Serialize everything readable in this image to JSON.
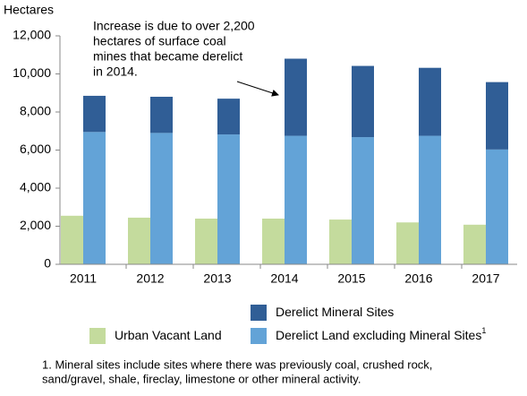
{
  "chart_data": {
    "type": "bar",
    "y_label": "Hectares",
    "annotation": {
      "lines": [
        "Increase is due to over 2,200",
        "hectares of surface coal",
        "mines that became derelict",
        "in 2014."
      ]
    },
    "categories": [
      "2011",
      "2012",
      "2013",
      "2014",
      "2015",
      "2016",
      "2017"
    ],
    "series": [
      {
        "name": "Urban Vacant Land",
        "color": "#c4db9d",
        "values": [
          2550,
          2450,
          2400,
          2400,
          2350,
          2200,
          2080
        ]
      },
      {
        "name": "Derelict Land excluding Mineral Sites",
        "note": "1",
        "color": "#63a3d7",
        "values": [
          6950,
          6900,
          6820,
          6750,
          6680,
          6750,
          6030
        ]
      },
      {
        "name": "Derelict Mineral Sites",
        "color": "#305e96",
        "stack_on": 1,
        "values": [
          1900,
          1900,
          1880,
          4050,
          3740,
          3570,
          3540
        ]
      }
    ],
    "ylim": [
      0,
      12000
    ],
    "yticks": [
      0,
      {
        "value": 2000,
        "label": "2,000"
      },
      {
        "value": 4000,
        "label": "4,000"
      },
      {
        "value": 6000,
        "label": "6,000"
      },
      {
        "value": 8000,
        "label": "8,000"
      },
      {
        "value": 10000,
        "label": "10,000"
      },
      {
        "value": 12000,
        "label": "12,000"
      }
    ],
    "footnote": {
      "lines": [
        "1. Mineral sites include sites where there was previously coal, crushed rock,",
        "sand/gravel, shale, fireclay, limestone or other mineral activity."
      ]
    }
  }
}
